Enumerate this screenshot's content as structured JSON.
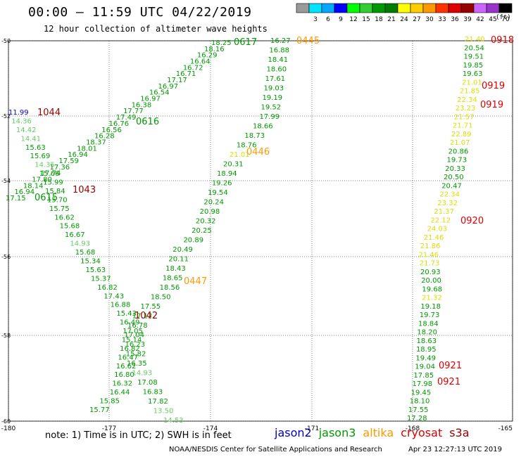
{
  "header": {
    "title": "00:00 – 11:59 UTC 04/22/2019",
    "subtitle": "12 hour collection of altimeter wave heights"
  },
  "color_scale": {
    "units": "(ft)",
    "bins": [
      {
        "label": "",
        "color": "#9a9a9a"
      },
      {
        "label": "3",
        "color": "#00e5ff"
      },
      {
        "label": "6",
        "color": "#00a8ff"
      },
      {
        "label": "9",
        "color": "#0000ff"
      },
      {
        "label": "12",
        "color": "#00ff00"
      },
      {
        "label": "15",
        "color": "#33cc33"
      },
      {
        "label": "18",
        "color": "#009900"
      },
      {
        "label": "21",
        "color": "#007a00"
      },
      {
        "label": "24",
        "color": "#ffff00"
      },
      {
        "label": "27",
        "color": "#ffcc00"
      },
      {
        "label": "30",
        "color": "#ff9900"
      },
      {
        "label": "33",
        "color": "#ff3300"
      },
      {
        "label": "36",
        "color": "#dd0000"
      },
      {
        "label": "39",
        "color": "#990000"
      },
      {
        "label": "42",
        "color": "#cc66ff"
      },
      {
        "label": "45",
        "color": "#9933cc"
      },
      {
        "label": "70",
        "color": "#000000"
      }
    ]
  },
  "axes": {
    "lon_ticks": [
      "-180",
      "-177",
      "-174",
      "-171",
      "-168",
      "-165"
    ],
    "lat_ticks": [
      "-50",
      "-52",
      "-54",
      "-56",
      "-58",
      "-60"
    ]
  },
  "colors": {
    "jason2": "#0000cc",
    "jason3": "#009900",
    "altika": "#ff9900",
    "cryosat": "#dd0000",
    "s3a": "#990000",
    "light_green": "#66cc66",
    "yellow": "#dddd00",
    "dark_green": "#006600"
  },
  "tracks": [
    {
      "id": "t1",
      "points": [
        {
          "v": "11.99",
          "c": "jason2"
        },
        {
          "v": "14.36",
          "c": "light_green"
        },
        {
          "v": "14.42",
          "c": "light_green"
        },
        {
          "v": "14.41",
          "c": "light_green"
        },
        {
          "v": "15.63",
          "c": "jason3"
        },
        {
          "v": "15.69",
          "c": "jason3"
        },
        {
          "v": "14.35",
          "c": "light_green"
        },
        {
          "v": "15.66",
          "c": "jason3"
        },
        {
          "v": "15.99",
          "c": "jason3"
        },
        {
          "v": "15.84",
          "c": "jason3"
        },
        {
          "v": "15.70",
          "c": "jason3"
        },
        {
          "v": "15.75",
          "c": "jason3"
        },
        {
          "v": "16.62",
          "c": "jason3"
        },
        {
          "v": "15.68",
          "c": "jason3"
        },
        {
          "v": "16.67",
          "c": "jason3"
        },
        {
          "v": "14.93",
          "c": "light_green"
        },
        {
          "v": "15.68",
          "c": "jason3"
        },
        {
          "v": "15.34",
          "c": "jason3"
        },
        {
          "v": "15.63",
          "c": "jason3"
        },
        {
          "v": "15.37",
          "c": "jason3"
        },
        {
          "v": "16.82",
          "c": "jason3"
        },
        {
          "v": "17.43",
          "c": "jason3"
        },
        {
          "v": "16.88",
          "c": "jason3"
        },
        {
          "v": "15.43",
          "c": "jason3"
        },
        {
          "v": "16.49",
          "c": "jason3"
        },
        {
          "v": "17.05",
          "c": "jason3"
        },
        {
          "v": "15.14",
          "c": "jason3"
        },
        {
          "v": "16.82",
          "c": "jason3"
        },
        {
          "v": "16.47",
          "c": "jason3"
        },
        {
          "v": "16.62",
          "c": "jason3"
        },
        {
          "v": "16.80",
          "c": "jason3"
        },
        {
          "v": "16.32",
          "c": "jason3"
        },
        {
          "v": "16.44",
          "c": "jason3"
        },
        {
          "v": "15.85",
          "c": "jason3"
        },
        {
          "v": "15.77",
          "c": "jason3"
        }
      ]
    },
    {
      "id": "t2",
      "points": [
        {
          "v": "18.25",
          "c": "jason3"
        },
        {
          "v": "18.16",
          "c": "jason3"
        },
        {
          "v": "16.29",
          "c": "jason3"
        },
        {
          "v": "16.64",
          "c": "jason3"
        },
        {
          "v": "16.72",
          "c": "jason3"
        },
        {
          "v": "16.71",
          "c": "jason3"
        },
        {
          "v": "17.17",
          "c": "jason3"
        },
        {
          "v": "16.97",
          "c": "jason3"
        },
        {
          "v": "16.54",
          "c": "jason3"
        },
        {
          "v": "16.97",
          "c": "jason3"
        },
        {
          "v": "16.38",
          "c": "jason3"
        },
        {
          "v": "17.77",
          "c": "jason3"
        },
        {
          "v": "17.49",
          "c": "jason3"
        },
        {
          "v": "16.76",
          "c": "jason3"
        },
        {
          "v": "16.56",
          "c": "jason3"
        },
        {
          "v": "16.28",
          "c": "jason3"
        },
        {
          "v": "18.37",
          "c": "jason3"
        },
        {
          "v": "18.01",
          "c": "jason3"
        },
        {
          "v": "16.94",
          "c": "jason3"
        },
        {
          "v": "17.59",
          "c": "jason3"
        },
        {
          "v": "17.36",
          "c": "jason3"
        },
        {
          "v": "17.74",
          "c": "jason3"
        },
        {
          "v": "17.80",
          "c": "jason3"
        },
        {
          "v": "18.14",
          "c": "jason3"
        },
        {
          "v": "16.94",
          "c": "jason3"
        },
        {
          "v": "17.15",
          "c": "jason3"
        }
      ]
    },
    {
      "id": "t3",
      "points": [
        {
          "v": "16.27",
          "c": "jason3"
        },
        {
          "v": "16.88",
          "c": "jason3"
        },
        {
          "v": "18.41",
          "c": "jason3"
        },
        {
          "v": "18.60",
          "c": "jason3"
        },
        {
          "v": "17.61",
          "c": "jason3"
        },
        {
          "v": "19.03",
          "c": "jason3"
        },
        {
          "v": "19.19",
          "c": "jason3"
        },
        {
          "v": "19.52",
          "c": "jason3"
        },
        {
          "v": "17.99",
          "c": "jason3"
        },
        {
          "v": "18.66",
          "c": "jason3"
        },
        {
          "v": "18.73",
          "c": "jason3"
        },
        {
          "v": "18.76",
          "c": "jason3"
        },
        {
          "v": "21.01",
          "c": "yellow"
        },
        {
          "v": "20.31",
          "c": "jason3"
        },
        {
          "v": "18.94",
          "c": "jason3"
        },
        {
          "v": "19.26",
          "c": "jason3"
        },
        {
          "v": "19.54",
          "c": "jason3"
        },
        {
          "v": "20.24",
          "c": "jason3"
        },
        {
          "v": "20.98",
          "c": "jason3"
        },
        {
          "v": "20.32",
          "c": "jason3"
        },
        {
          "v": "20.25",
          "c": "jason3"
        },
        {
          "v": "20.89",
          "c": "jason3"
        },
        {
          "v": "20.49",
          "c": "jason3"
        },
        {
          "v": "20.11",
          "c": "jason3"
        },
        {
          "v": "18.43",
          "c": "jason3"
        },
        {
          "v": "18.65",
          "c": "jason3"
        },
        {
          "v": "18.56",
          "c": "jason3"
        },
        {
          "v": "18.50",
          "c": "jason3"
        },
        {
          "v": "17.55",
          "c": "jason3"
        },
        {
          "v": "17.12",
          "c": "jason3"
        },
        {
          "v": "16.78",
          "c": "jason3"
        },
        {
          "v": "17.04",
          "c": "jason3"
        },
        {
          "v": "16.23",
          "c": "jason3"
        },
        {
          "v": "15.82",
          "c": "jason3"
        },
        {
          "v": "16.35",
          "c": "jason3"
        },
        {
          "v": "14.93",
          "c": "light_green"
        },
        {
          "v": "17.08",
          "c": "jason3"
        },
        {
          "v": "16.83",
          "c": "jason3"
        },
        {
          "v": "17.82",
          "c": "jason3"
        },
        {
          "v": "13.50",
          "c": "light_green"
        },
        {
          "v": "14.53",
          "c": "light_green"
        }
      ]
    },
    {
      "id": "t4",
      "points": [
        {
          "v": "21.40",
          "c": "yellow"
        },
        {
          "v": "20.54",
          "c": "jason3"
        },
        {
          "v": "19.51",
          "c": "jason3"
        },
        {
          "v": "19.85",
          "c": "jason3"
        },
        {
          "v": "19.63",
          "c": "jason3"
        },
        {
          "v": "21.01",
          "c": "yellow"
        },
        {
          "v": "21.85",
          "c": "yellow"
        },
        {
          "v": "22.34",
          "c": "yellow"
        },
        {
          "v": "23.23",
          "c": "yellow"
        },
        {
          "v": "21.57",
          "c": "yellow"
        },
        {
          "v": "21.71",
          "c": "yellow"
        },
        {
          "v": "22.89",
          "c": "yellow"
        },
        {
          "v": "21.07",
          "c": "yellow"
        },
        {
          "v": "20.86",
          "c": "jason3"
        },
        {
          "v": "19.73",
          "c": "jason3"
        },
        {
          "v": "20.33",
          "c": "jason3"
        },
        {
          "v": "20.50",
          "c": "jason3"
        },
        {
          "v": "20.47",
          "c": "jason3"
        },
        {
          "v": "22.34",
          "c": "yellow"
        },
        {
          "v": "23.32",
          "c": "yellow"
        },
        {
          "v": "21.37",
          "c": "yellow"
        },
        {
          "v": "22.12",
          "c": "yellow"
        },
        {
          "v": "24.03",
          "c": "yellow"
        },
        {
          "v": "21.46",
          "c": "yellow"
        },
        {
          "v": "21.86",
          "c": "yellow"
        },
        {
          "v": "21.46",
          "c": "yellow"
        },
        {
          "v": "21.73",
          "c": "yellow"
        },
        {
          "v": "20.93",
          "c": "jason3"
        },
        {
          "v": "20.00",
          "c": "jason3"
        },
        {
          "v": "19.68",
          "c": "jason3"
        },
        {
          "v": "21.32",
          "c": "yellow"
        },
        {
          "v": "19.18",
          "c": "jason3"
        },
        {
          "v": "19.73",
          "c": "jason3"
        },
        {
          "v": "18.84",
          "c": "jason3"
        },
        {
          "v": "18.20",
          "c": "jason3"
        },
        {
          "v": "18.63",
          "c": "jason3"
        },
        {
          "v": "18.95",
          "c": "jason3"
        },
        {
          "v": "19.49",
          "c": "jason3"
        },
        {
          "v": "19.04",
          "c": "jason3"
        },
        {
          "v": "17.85",
          "c": "jason3"
        },
        {
          "v": "17.98",
          "c": "jason3"
        },
        {
          "v": "19.45",
          "c": "jason3"
        },
        {
          "v": "18.10",
          "c": "jason3"
        },
        {
          "v": "17.55",
          "c": "jason3"
        },
        {
          "v": "17.28",
          "c": "jason3"
        }
      ]
    }
  ],
  "time_labels": [
    {
      "text": "1044",
      "c": "s3a"
    },
    {
      "text": "1043",
      "c": "s3a"
    },
    {
      "text": "1042",
      "c": "s3a"
    },
    {
      "text": "0617",
      "c": "jason3"
    },
    {
      "text": "0616",
      "c": "jason3"
    },
    {
      "text": "0615",
      "c": "jason3"
    },
    {
      "text": "0445",
      "c": "altika"
    },
    {
      "text": "0446",
      "c": "altika"
    },
    {
      "text": "0447",
      "c": "altika"
    },
    {
      "text": "0918",
      "c": "cryosat"
    },
    {
      "text": "0919",
      "c": "cryosat"
    },
    {
      "text": "0919",
      "c": "cryosat"
    },
    {
      "text": "0920",
      "c": "cryosat"
    },
    {
      "text": "0921",
      "c": "cryosat"
    },
    {
      "text": "0921",
      "c": "cryosat"
    }
  ],
  "note": "note: 1) Time is in UTC; 2) SWH is in feet",
  "legend": [
    {
      "label": "jason2",
      "c": "jason2"
    },
    {
      "label": "jason3",
      "c": "jason3"
    },
    {
      "label": "altika",
      "c": "altika"
    },
    {
      "label": "cryosat",
      "c": "cryosat"
    },
    {
      "label": "s3a",
      "c": "s3a"
    }
  ],
  "credit": "NOAA/NESDIS Center for Satellite Applications and Research",
  "stamp": "Apr 23 12:27:13 UTC 2019"
}
